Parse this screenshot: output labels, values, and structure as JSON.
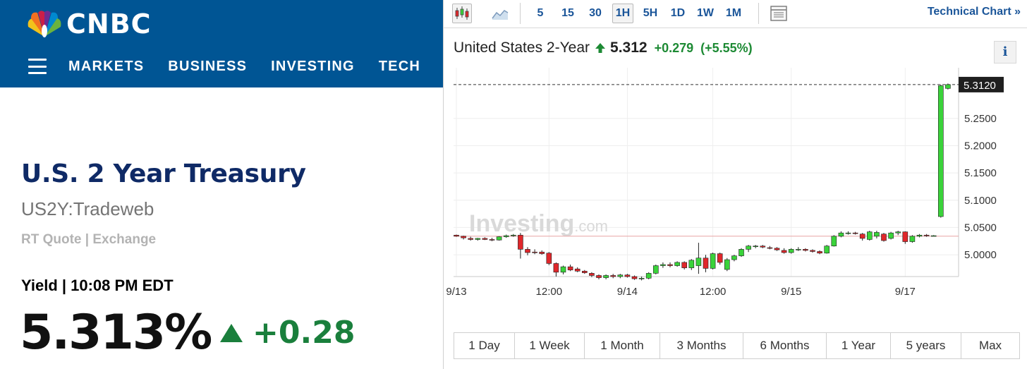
{
  "cnbc": {
    "logo_text": "CNBC",
    "nav": [
      "MARKETS",
      "BUSINESS",
      "INVESTING",
      "TECH"
    ],
    "title": "U.S. 2 Year Treasury",
    "symbol": "US2Y:Tradeweb",
    "source": "RT Quote | Exchange",
    "yield_label": "Yield | 10:08 PM EDT",
    "price": "5.313%",
    "change": "+0.28",
    "colors": {
      "header_bg": "#005594",
      "title": "#0f2a66",
      "up": "#1a7f3c"
    }
  },
  "widget": {
    "intervals": [
      "5",
      "15",
      "30",
      "1H",
      "5H",
      "1D",
      "1W",
      "1M"
    ],
    "active_interval": "1H",
    "technical_chart": "Technical Chart »",
    "symbol_name": "United States 2-Year",
    "symbol_price": "5.312",
    "symbol_change": "+0.279",
    "symbol_change_pct": "(+5.55%)",
    "info_label": "i",
    "ranges": [
      "1 Day",
      "1 Week",
      "1 Month",
      "3 Months",
      "6 Months",
      "1 Year",
      "5 years",
      "Max"
    ],
    "icons": [
      "candlestick-icon",
      "area-chart-icon",
      "table-icon",
      "arrow-up-icon",
      "info-icon"
    ]
  },
  "chart_data": {
    "type": "candlestick",
    "watermark": "Investing.com",
    "y_ticks": [
      "5.0000",
      "5.0500",
      "5.1000",
      "5.1500",
      "5.2000",
      "5.2500"
    ],
    "y_tick_values": [
      5.0,
      5.05,
      5.1,
      5.15,
      5.2,
      5.25
    ],
    "ylim": [
      4.96,
      5.33
    ],
    "last_price_label": "5.3120",
    "last_price": 5.312,
    "previous_close": 5.034,
    "x_tick_labels": [
      "9/13",
      "12:00",
      "9/14",
      "12:00",
      "9/15",
      "9/17"
    ],
    "x_tick_index": [
      0,
      13,
      24,
      36,
      47,
      63
    ],
    "candles": [
      {
        "o": 5.036,
        "h": 5.037,
        "l": 5.033,
        "c": 5.034
      },
      {
        "o": 5.034,
        "h": 5.035,
        "l": 5.028,
        "c": 5.031
      },
      {
        "o": 5.03,
        "h": 5.033,
        "l": 5.026,
        "c": 5.028
      },
      {
        "o": 5.028,
        "h": 5.031,
        "l": 5.026,
        "c": 5.03
      },
      {
        "o": 5.03,
        "h": 5.032,
        "l": 5.027,
        "c": 5.028
      },
      {
        "o": 5.028,
        "h": 5.031,
        "l": 5.025,
        "c": 5.027
      },
      {
        "o": 5.027,
        "h": 5.034,
        "l": 5.026,
        "c": 5.033
      },
      {
        "o": 5.033,
        "h": 5.037,
        "l": 5.031,
        "c": 5.035
      },
      {
        "o": 5.035,
        "h": 5.038,
        "l": 5.033,
        "c": 5.036
      },
      {
        "o": 5.036,
        "h": 5.04,
        "l": 4.993,
        "c": 5.01
      },
      {
        "o": 5.01,
        "h": 5.014,
        "l": 4.999,
        "c": 5.004
      },
      {
        "o": 5.005,
        "h": 5.01,
        "l": 5.001,
        "c": 5.004
      },
      {
        "o": 5.005,
        "h": 5.008,
        "l": 5.0,
        "c": 5.002
      },
      {
        "o": 5.003,
        "h": 5.005,
        "l": 4.981,
        "c": 4.984
      },
      {
        "o": 4.984,
        "h": 4.986,
        "l": 4.96,
        "c": 4.968
      },
      {
        "o": 4.968,
        "h": 4.98,
        "l": 4.964,
        "c": 4.978
      },
      {
        "o": 4.978,
        "h": 4.982,
        "l": 4.97,
        "c": 4.972
      },
      {
        "o": 4.974,
        "h": 4.977,
        "l": 4.968,
        "c": 4.97
      },
      {
        "o": 4.97,
        "h": 4.972,
        "l": 4.965,
        "c": 4.967
      },
      {
        "o": 4.966,
        "h": 4.968,
        "l": 4.959,
        "c": 4.962
      },
      {
        "o": 4.962,
        "h": 4.964,
        "l": 4.955,
        "c": 4.958
      },
      {
        "o": 4.958,
        "h": 4.964,
        "l": 4.955,
        "c": 4.962
      },
      {
        "o": 4.962,
        "h": 4.965,
        "l": 4.957,
        "c": 4.96
      },
      {
        "o": 4.96,
        "h": 4.965,
        "l": 4.957,
        "c": 4.963
      },
      {
        "o": 4.963,
        "h": 4.965,
        "l": 4.958,
        "c": 4.96
      },
      {
        "o": 4.96,
        "h": 4.962,
        "l": 4.954,
        "c": 4.956
      },
      {
        "o": 4.956,
        "h": 4.96,
        "l": 4.953,
        "c": 4.957
      },
      {
        "o": 4.957,
        "h": 4.968,
        "l": 4.955,
        "c": 4.966
      },
      {
        "o": 4.966,
        "h": 4.982,
        "l": 4.964,
        "c": 4.98
      },
      {
        "o": 4.98,
        "h": 4.986,
        "l": 4.976,
        "c": 4.982
      },
      {
        "o": 4.982,
        "h": 4.986,
        "l": 4.977,
        "c": 4.98
      },
      {
        "o": 4.98,
        "h": 4.988,
        "l": 4.978,
        "c": 4.986
      },
      {
        "o": 4.986,
        "h": 4.988,
        "l": 4.973,
        "c": 4.976
      },
      {
        "o": 4.976,
        "h": 4.992,
        "l": 4.972,
        "c": 4.99
      },
      {
        "o": 4.98,
        "h": 5.022,
        "l": 4.965,
        "c": 4.994
      },
      {
        "o": 4.994,
        "h": 5.0,
        "l": 4.968,
        "c": 4.975
      },
      {
        "o": 4.975,
        "h": 5.004,
        "l": 4.973,
        "c": 5.002
      },
      {
        "o": 5.002,
        "h": 5.004,
        "l": 4.982,
        "c": 4.986
      },
      {
        "o": 4.973,
        "h": 4.994,
        "l": 4.97,
        "c": 4.991
      },
      {
        "o": 4.991,
        "h": 5.0,
        "l": 4.988,
        "c": 4.998
      },
      {
        "o": 4.998,
        "h": 5.012,
        "l": 4.996,
        "c": 5.01
      },
      {
        "o": 5.01,
        "h": 5.018,
        "l": 5.005,
        "c": 5.016
      },
      {
        "o": 5.016,
        "h": 5.018,
        "l": 5.012,
        "c": 5.016
      },
      {
        "o": 5.016,
        "h": 5.018,
        "l": 5.012,
        "c": 5.014
      },
      {
        "o": 5.013,
        "h": 5.016,
        "l": 5.01,
        "c": 5.012
      },
      {
        "o": 5.012,
        "h": 5.014,
        "l": 5.007,
        "c": 5.009
      },
      {
        "o": 5.008,
        "h": 5.012,
        "l": 5.002,
        "c": 5.004
      },
      {
        "o": 5.004,
        "h": 5.012,
        "l": 5.002,
        "c": 5.01
      },
      {
        "o": 5.01,
        "h": 5.014,
        "l": 5.007,
        "c": 5.01
      },
      {
        "o": 5.01,
        "h": 5.012,
        "l": 5.006,
        "c": 5.008
      },
      {
        "o": 5.008,
        "h": 5.01,
        "l": 5.004,
        "c": 5.006
      },
      {
        "o": 5.006,
        "h": 5.008,
        "l": 5.001,
        "c": 5.003
      },
      {
        "o": 5.003,
        "h": 5.018,
        "l": 5.002,
        "c": 5.016
      },
      {
        "o": 5.016,
        "h": 5.036,
        "l": 5.015,
        "c": 5.034
      },
      {
        "o": 5.034,
        "h": 5.043,
        "l": 5.032,
        "c": 5.04
      },
      {
        "o": 5.04,
        "h": 5.043,
        "l": 5.037,
        "c": 5.04
      },
      {
        "o": 5.04,
        "h": 5.042,
        "l": 5.037,
        "c": 5.039
      },
      {
        "o": 5.038,
        "h": 5.04,
        "l": 5.026,
        "c": 5.03
      },
      {
        "o": 5.028,
        "h": 5.044,
        "l": 5.026,
        "c": 5.042
      },
      {
        "o": 5.034,
        "h": 5.044,
        "l": 5.03,
        "c": 5.041
      },
      {
        "o": 5.038,
        "h": 5.04,
        "l": 5.024,
        "c": 5.026
      },
      {
        "o": 5.03,
        "h": 5.042,
        "l": 5.028,
        "c": 5.04
      },
      {
        "o": 5.04,
        "h": 5.044,
        "l": 5.036,
        "c": 5.042
      },
      {
        "o": 5.042,
        "h": 5.043,
        "l": 5.02,
        "c": 5.024
      },
      {
        "o": 5.024,
        "h": 5.036,
        "l": 5.022,
        "c": 5.034
      },
      {
        "o": 5.034,
        "h": 5.038,
        "l": 5.032,
        "c": 5.036
      },
      {
        "o": 5.036,
        "h": 5.038,
        "l": 5.033,
        "c": 5.035
      },
      {
        "o": 5.035,
        "h": 5.036,
        "l": 5.034,
        "c": 5.035
      },
      {
        "o": 5.07,
        "h": 5.312,
        "l": 5.068,
        "c": 5.31
      },
      {
        "o": 5.305,
        "h": 5.314,
        "l": 5.303,
        "c": 5.312
      }
    ],
    "colors": {
      "up": "#3ad33a",
      "down": "#e0272b",
      "grid": "#eeeeee",
      "prev_close_line": "#e8a4a4"
    }
  }
}
